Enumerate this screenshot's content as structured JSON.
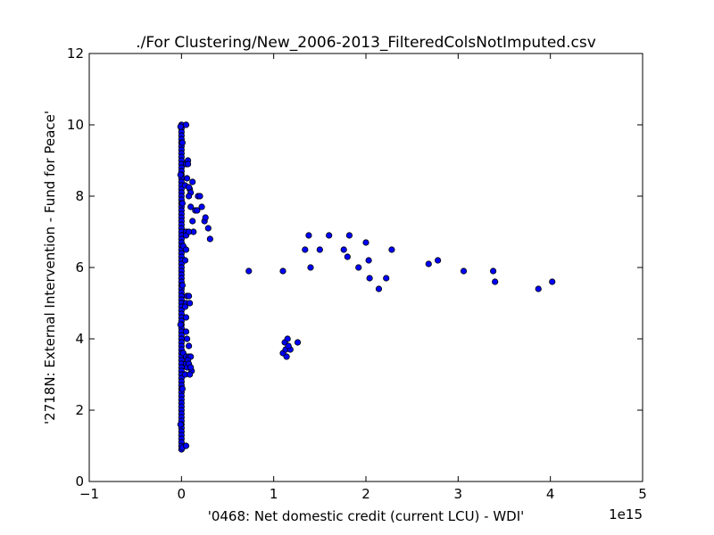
{
  "chart_data": {
    "type": "scatter",
    "title": "./For Clustering/New_2006-2013_FilteredColsNotImputed.csv",
    "xlabel": "'0468: Net domestic credit  (current LCU) - WDI'",
    "ylabel": "'2718N: External Intervention - Fund for Peace'",
    "x_offset_label": "1e15",
    "x_scale": 1000000000000000.0,
    "xlim": [
      -1000000000000000.0,
      5000000000000000.0
    ],
    "ylim": [
      0,
      12
    ],
    "x_ticks": [
      -1000000000000000.0,
      0,
      1000000000000000.0,
      2000000000000000.0,
      3000000000000000.0,
      4000000000000000.0,
      5000000000000000.0
    ],
    "x_tick_labels": [
      "−1",
      "0",
      "1",
      "2",
      "3",
      "4",
      "5"
    ],
    "y_ticks": [
      0,
      2,
      4,
      6,
      8,
      10,
      12
    ],
    "y_tick_labels": [
      "0",
      "2",
      "4",
      "6",
      "8",
      "10",
      "12"
    ],
    "grid": false,
    "marker_color": "#0000ff",
    "marker_edge_color": "#000000",
    "points": [
      [
        0,
        10.0
      ],
      [
        0,
        9.9
      ],
      [
        0,
        9.8
      ],
      [
        0,
        9.7
      ],
      [
        0,
        9.6
      ],
      [
        0,
        9.5
      ],
      [
        0,
        9.4
      ],
      [
        0,
        9.3
      ],
      [
        0,
        9.2
      ],
      [
        0,
        9.1
      ],
      [
        0,
        9.0
      ],
      [
        0,
        8.9
      ],
      [
        0,
        8.8
      ],
      [
        0,
        8.7
      ],
      [
        0,
        8.6
      ],
      [
        0,
        8.5
      ],
      [
        0,
        8.4
      ],
      [
        0,
        8.3
      ],
      [
        0,
        8.2
      ],
      [
        0,
        8.1
      ],
      [
        0,
        8.0
      ],
      [
        0,
        7.9
      ],
      [
        0,
        7.8
      ],
      [
        0,
        7.7
      ],
      [
        0,
        7.6
      ],
      [
        0,
        7.5
      ],
      [
        0,
        7.4
      ],
      [
        0,
        7.3
      ],
      [
        0,
        7.2
      ],
      [
        0,
        7.1
      ],
      [
        0,
        7.0
      ],
      [
        0,
        6.9
      ],
      [
        0,
        6.8
      ],
      [
        0,
        6.7
      ],
      [
        0,
        6.6
      ],
      [
        0,
        6.5
      ],
      [
        0,
        6.4
      ],
      [
        0,
        6.3
      ],
      [
        0,
        6.2
      ],
      [
        0,
        6.1
      ],
      [
        0,
        6.0
      ],
      [
        0,
        5.9
      ],
      [
        0,
        5.8
      ],
      [
        0,
        5.7
      ],
      [
        0,
        5.6
      ],
      [
        0,
        5.5
      ],
      [
        0,
        5.4
      ],
      [
        0,
        5.3
      ],
      [
        0,
        5.2
      ],
      [
        0,
        5.1
      ],
      [
        0,
        5.0
      ],
      [
        0,
        4.9
      ],
      [
        0,
        4.8
      ],
      [
        0,
        4.7
      ],
      [
        0,
        4.6
      ],
      [
        0,
        4.5
      ],
      [
        0,
        4.4
      ],
      [
        0,
        4.3
      ],
      [
        0,
        4.2
      ],
      [
        0,
        4.1
      ],
      [
        0,
        4.0
      ],
      [
        0,
        3.9
      ],
      [
        0,
        3.8
      ],
      [
        0,
        3.7
      ],
      [
        0,
        3.6
      ],
      [
        0,
        3.5
      ],
      [
        0,
        3.4
      ],
      [
        0,
        3.3
      ],
      [
        0,
        3.2
      ],
      [
        0,
        3.1
      ],
      [
        0,
        3.0
      ],
      [
        0,
        2.9
      ],
      [
        0,
        2.8
      ],
      [
        0,
        2.7
      ],
      [
        0,
        2.6
      ],
      [
        0,
        2.5
      ],
      [
        0,
        2.4
      ],
      [
        0,
        2.3
      ],
      [
        0,
        2.2
      ],
      [
        0,
        2.1
      ],
      [
        0,
        2.0
      ],
      [
        0,
        1.9
      ],
      [
        0,
        1.8
      ],
      [
        0,
        1.7
      ],
      [
        0,
        1.6
      ],
      [
        0,
        1.5
      ],
      [
        0,
        1.4
      ],
      [
        0,
        1.3
      ],
      [
        0,
        1.2
      ],
      [
        0,
        1.1
      ],
      [
        0,
        1.0
      ],
      [
        0,
        0.9
      ],
      [
        -10000000000000.0,
        9.95
      ],
      [
        10000000000000.0,
        9.5
      ],
      [
        -10000000000000.0,
        8.6
      ],
      [
        10000000000000.0,
        7.8
      ],
      [
        20000000000000.0,
        6.6
      ],
      [
        10000000000000.0,
        5.5
      ],
      [
        -10000000000000.0,
        4.4
      ],
      [
        20000000000000.0,
        3.6
      ],
      [
        10000000000000.0,
        2.6
      ],
      [
        -10000000000000.0,
        1.6
      ],
      [
        10000000000000.0,
        0.95
      ],
      [
        50000000000000.0,
        10.0
      ],
      [
        50000000000000.0,
        8.9
      ],
      [
        60000000000000.0,
        8.5
      ],
      [
        40000000000000.0,
        8.3
      ],
      [
        50000000000000.0,
        7.0
      ],
      [
        50000000000000.0,
        6.9
      ],
      [
        50000000000000.0,
        6.5
      ],
      [
        40000000000000.0,
        6.2
      ],
      [
        60000000000000.0,
        5.2
      ],
      [
        50000000000000.0,
        5.0
      ],
      [
        40000000000000.0,
        4.9
      ],
      [
        50000000000000.0,
        4.6
      ],
      [
        50000000000000.0,
        4.2
      ],
      [
        60000000000000.0,
        4.0
      ],
      [
        50000000000000.0,
        3.5
      ],
      [
        50000000000000.0,
        3.3
      ],
      [
        60000000000000.0,
        3.2
      ],
      [
        40000000000000.0,
        3.0
      ],
      [
        50000000000000.0,
        1.0
      ],
      [
        70000000000000.0,
        9.0
      ],
      [
        70000000000000.0,
        8.9
      ],
      [
        90000000000000.0,
        8.2
      ],
      [
        100000000000000.0,
        8.1
      ],
      [
        80000000000000.0,
        8.0
      ],
      [
        120000000000000.0,
        8.4
      ],
      [
        80000000000000.0,
        8.25
      ],
      [
        100000000000000.0,
        7.7
      ],
      [
        120000000000000.0,
        7.3
      ],
      [
        130000000000000.0,
        7.0
      ],
      [
        80000000000000.0,
        7.0
      ],
      [
        150000000000000.0,
        7.6
      ],
      [
        170000000000000.0,
        7.6
      ],
      [
        180000000000000.0,
        8.0
      ],
      [
        200000000000000.0,
        8.0
      ],
      [
        220000000000000.0,
        7.7
      ],
      [
        250000000000000.0,
        7.3
      ],
      [
        260000000000000.0,
        7.4
      ],
      [
        290000000000000.0,
        7.1
      ],
      [
        310000000000000.0,
        6.8
      ],
      [
        80000000000000.0,
        5.2
      ],
      [
        90000000000000.0,
        5.0
      ],
      [
        80000000000000.0,
        3.8
      ],
      [
        80000000000000.0,
        3.5
      ],
      [
        100000000000000.0,
        3.5
      ],
      [
        70000000000000.0,
        3.4
      ],
      [
        80000000000000.0,
        3.3
      ],
      [
        110000000000000.0,
        3.1
      ],
      [
        100000000000000.0,
        3.2
      ],
      [
        90000000000000.0,
        3.0
      ],
      [
        730000000000000.0,
        5.9
      ],
      [
        1100000000000000.0,
        5.9
      ],
      [
        1100000000000000.0,
        3.6
      ],
      [
        1120000000000000.0,
        3.9
      ],
      [
        1140000000000000.0,
        3.5
      ],
      [
        1150000000000000.0,
        4.0
      ],
      [
        1130000000000000.0,
        3.7
      ],
      [
        1180000000000000.0,
        3.7
      ],
      [
        1160000000000000.0,
        3.8
      ],
      [
        1260000000000000.0,
        3.9
      ],
      [
        1340000000000000.0,
        6.5
      ],
      [
        1380000000000000.0,
        6.9
      ],
      [
        1400000000000000.0,
        6.0
      ],
      [
        1500000000000000.0,
        6.5
      ],
      [
        1600000000000000.0,
        6.9
      ],
      [
        1760000000000000.0,
        6.5
      ],
      [
        1800000000000000.0,
        6.3
      ],
      [
        1820000000000000.0,
        6.9
      ],
      [
        1920000000000000.0,
        6.0
      ],
      [
        2000000000000000.0,
        6.7
      ],
      [
        2030000000000000.0,
        6.2
      ],
      [
        2040000000000000.0,
        5.7
      ],
      [
        2140000000000000.0,
        5.4
      ],
      [
        2220000000000000.0,
        5.7
      ],
      [
        2280000000000000.0,
        6.5
      ],
      [
        2680000000000000.0,
        6.1
      ],
      [
        2780000000000000.0,
        6.2
      ],
      [
        3060000000000000.0,
        5.9
      ],
      [
        3380000000000000.0,
        5.9
      ],
      [
        3400000000000000.0,
        5.6
      ],
      [
        3870000000000000.0,
        5.4
      ],
      [
        4020000000000000.0,
        5.6
      ]
    ]
  }
}
